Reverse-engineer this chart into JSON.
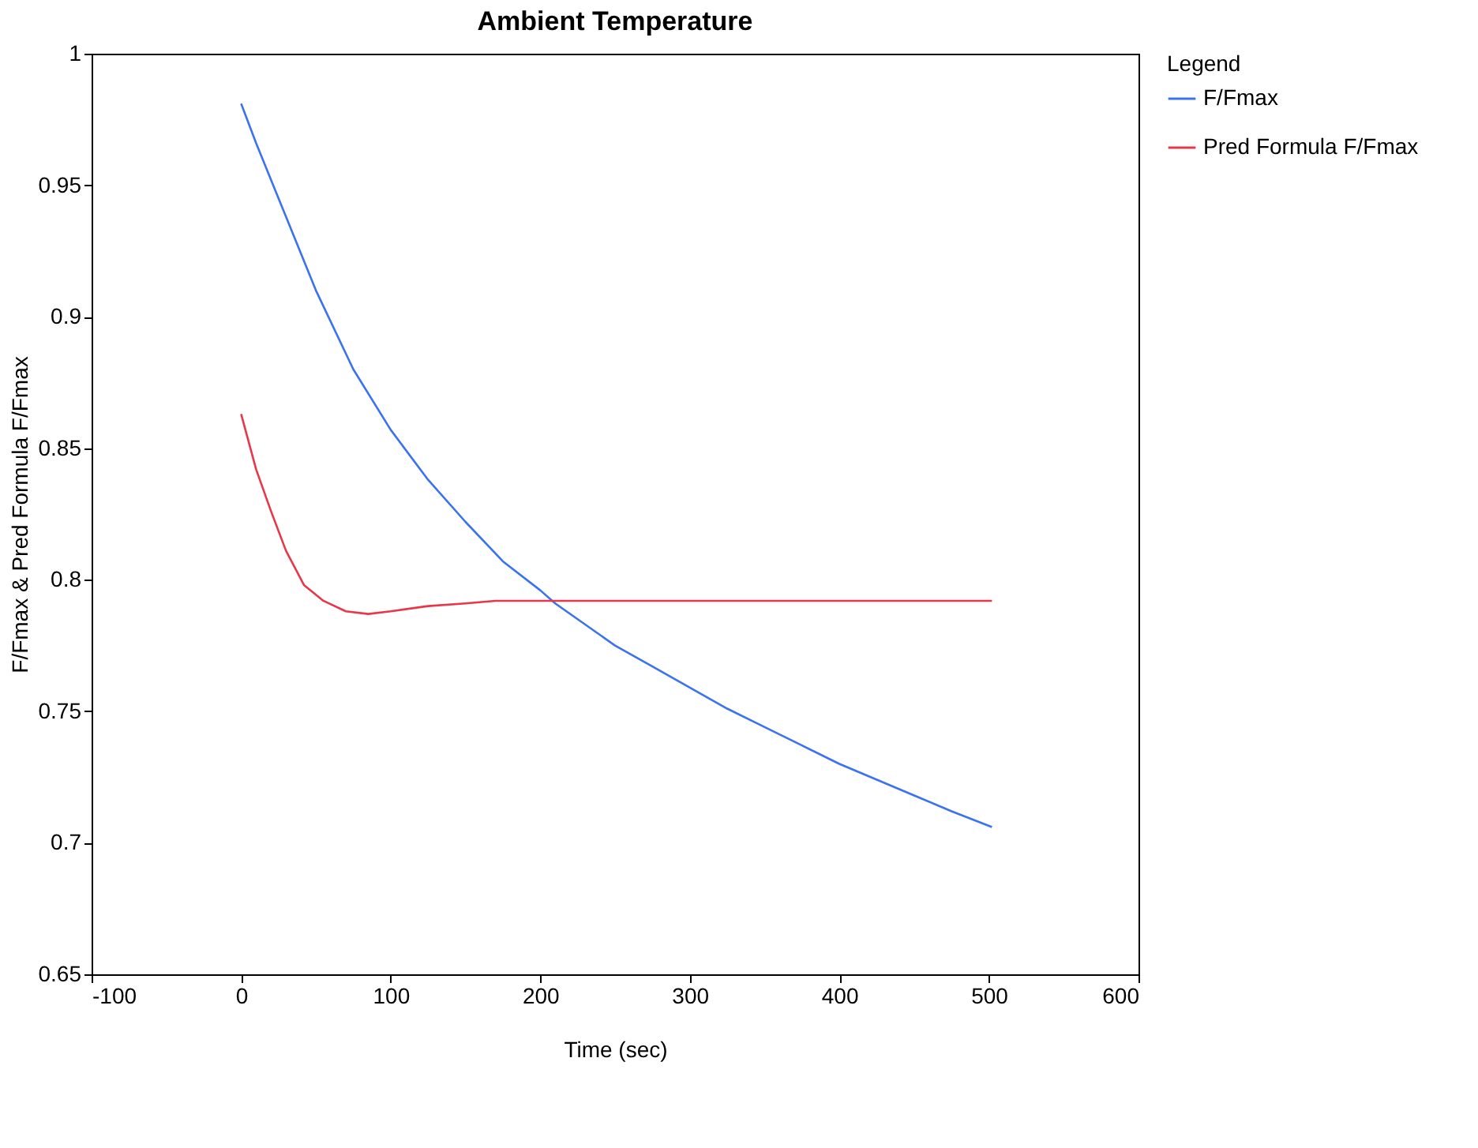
{
  "chart_data": {
    "type": "line",
    "title": "Ambient Temperature",
    "xlabel": "Time (sec)",
    "ylabel": "F/Fmax & Pred Formula F/Fmax",
    "legend_title": "Legend",
    "legend": "top right",
    "grid": false,
    "xlim": [
      -100,
      600
    ],
    "xticks": [
      -100,
      0,
      100,
      200,
      300,
      400,
      500,
      600
    ],
    "ylim": [
      0.65,
      1
    ],
    "yticks": [
      0.65,
      0.7,
      0.75,
      0.8,
      0.85,
      0.9,
      0.95,
      1
    ],
    "series": [
      {
        "name": "F/Fmax",
        "color": "#3a72f0",
        "x": [
          0,
          10,
          25,
          50,
          75,
          100,
          125,
          150,
          175,
          200,
          210,
          225,
          250,
          275,
          300,
          325,
          350,
          375,
          400,
          425,
          450,
          475,
          502
        ],
        "values": [
          0.981,
          0.966,
          0.945,
          0.91,
          0.88,
          0.857,
          0.838,
          0.822,
          0.807,
          0.796,
          0.791,
          0.785,
          0.775,
          0.767,
          0.759,
          0.751,
          0.744,
          0.737,
          0.73,
          0.724,
          0.718,
          0.712,
          0.706
        ]
      },
      {
        "name": "Pred Formula F/Fmax",
        "color": "#e8364a",
        "x": [
          0,
          10,
          20,
          30,
          42,
          55,
          70,
          85,
          100,
          125,
          150,
          170,
          502
        ],
        "values": [
          0.863,
          0.842,
          0.826,
          0.811,
          0.798,
          0.792,
          0.788,
          0.787,
          0.788,
          0.79,
          0.791,
          0.792,
          0.792
        ]
      }
    ]
  }
}
